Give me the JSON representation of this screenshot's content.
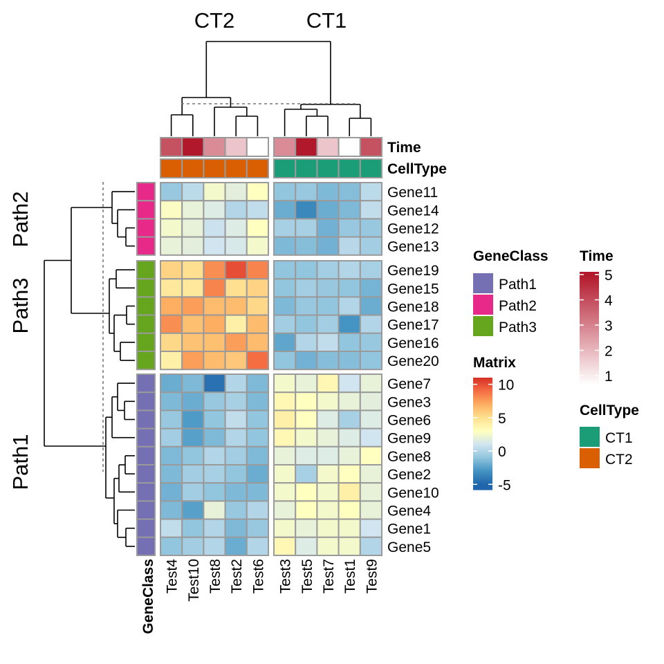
{
  "chart_data": {
    "type": "heatmap",
    "col_split_titles": [
      "CT2",
      "CT1"
    ],
    "row_split_titles": [
      "Path2",
      "Path3",
      "Path1"
    ],
    "col_groups": [
      [
        "Test4",
        "Test10",
        "Test8",
        "Test2",
        "Test6"
      ],
      [
        "Test3",
        "Test5",
        "Test7",
        "Test1",
        "Test9"
      ]
    ],
    "row_groups": [
      [
        "Gene11",
        "Gene14",
        "Gene12",
        "Gene13"
      ],
      [
        "Gene19",
        "Gene15",
        "Gene18",
        "Gene17",
        "Gene16",
        "Gene20"
      ],
      [
        "Gene7",
        "Gene3",
        "Gene6",
        "Gene9",
        "Gene8",
        "Gene2",
        "Gene10",
        "Gene4",
        "Gene1",
        "Gene5"
      ]
    ],
    "values": [
      [
        -0.8,
        0.3,
        2.5,
        1.8,
        3.0,
        -1.0,
        -0.8,
        -1.5,
        -1.3,
        0.3
      ],
      [
        2.8,
        2.0,
        1.5,
        0.0,
        0.5,
        -2.0,
        -3.5,
        -2.0,
        -1.5,
        0.5
      ],
      [
        2.5,
        2.0,
        0.8,
        1.5,
        3.0,
        -0.3,
        -0.3,
        -1.8,
        -0.8,
        -0.8
      ],
      [
        2.0,
        1.8,
        1.0,
        1.3,
        2.5,
        -1.5,
        -1.3,
        -1.8,
        0.2,
        -0.5
      ],
      [
        5.5,
        5.0,
        8.0,
        10.0,
        8.3,
        -1.0,
        -1.0,
        -0.5,
        0.0,
        -0.3
      ],
      [
        4.5,
        4.5,
        8.3,
        5.0,
        5.5,
        -1.0,
        -0.5,
        -0.8,
        -1.0,
        -1.7
      ],
      [
        7.0,
        7.5,
        6.5,
        6.5,
        5.3,
        -1.5,
        -0.8,
        -1.0,
        0.0,
        -2.0
      ],
      [
        8.0,
        6.3,
        7.0,
        4.0,
        6.5,
        -0.5,
        -1.0,
        -0.5,
        -3.0,
        0.0
      ],
      [
        5.3,
        6.2,
        6.3,
        7.5,
        6.5,
        -2.3,
        0.0,
        0.5,
        -1.0,
        -0.8
      ],
      [
        4.0,
        7.5,
        6.5,
        6.0,
        9.0,
        -1.0,
        -1.8,
        -1.3,
        -1.3,
        -1.0
      ],
      [
        -2.0,
        -1.5,
        -4.5,
        0.0,
        -1.5,
        2.5,
        2.0,
        3.5,
        1.0,
        2.0
      ],
      [
        -1.5,
        -2.0,
        -0.8,
        -0.3,
        -1.5,
        3.5,
        3.0,
        2.5,
        2.0,
        1.8
      ],
      [
        -0.8,
        -2.7,
        -1.0,
        0.5,
        -1.0,
        4.0,
        3.0,
        1.5,
        -0.3,
        1.5
      ],
      [
        -0.5,
        -2.5,
        -1.5,
        0.0,
        -1.0,
        3.5,
        2.5,
        2.0,
        1.5,
        1.0
      ],
      [
        -1.5,
        -1.0,
        0.0,
        -0.5,
        -1.5,
        2.0,
        1.5,
        1.5,
        2.0,
        3.0
      ],
      [
        -1.5,
        -0.5,
        -0.3,
        -1.0,
        -2.0,
        2.5,
        -0.3,
        2.5,
        3.0,
        2.0
      ],
      [
        -1.8,
        -0.5,
        -1.0,
        -1.5,
        -1.5,
        2.5,
        3.0,
        2.5,
        4.0,
        2.0
      ],
      [
        -1.5,
        -2.5,
        2.0,
        -0.8,
        0.0,
        2.0,
        3.0,
        2.5,
        3.0,
        2.0
      ],
      [
        0.5,
        -1.0,
        0.0,
        -1.5,
        -0.8,
        2.5,
        2.0,
        2.5,
        2.5,
        1.0
      ],
      [
        -1.0,
        -0.5,
        0.0,
        -2.0,
        0.0,
        3.5,
        1.5,
        2.5,
        2.5,
        0.0
      ]
    ],
    "annotations": {
      "Time": {
        "label": "Time",
        "values": [
          4,
          5,
          3,
          2,
          1,
          3,
          5,
          2,
          1,
          4
        ],
        "legend_ticks": [
          "1",
          "2",
          "3",
          "4",
          "5"
        ]
      },
      "CellType": {
        "label": "CellType",
        "values": [
          "CT2",
          "CT2",
          "CT2",
          "CT2",
          "CT2",
          "CT1",
          "CT1",
          "CT1",
          "CT1",
          "CT1"
        ],
        "legend_levels": [
          "CT1",
          "CT2"
        ],
        "colors": {
          "CT1": "#1B9E77",
          "CT2": "#D95F02"
        }
      },
      "GeneClass": {
        "label": "GeneClass",
        "values": [
          "Path2",
          "Path3",
          "Path1"
        ],
        "legend_levels": [
          "Path1",
          "Path2",
          "Path3"
        ],
        "colors": {
          "Path1": "#7570B3",
          "Path2": "#E7298A",
          "Path3": "#66A61E"
        }
      }
    },
    "matrix_legend": {
      "title": "Matrix",
      "ticks": [
        "10",
        "5",
        "0",
        "-5"
      ]
    },
    "color_scale": {
      "min": -5,
      "max": 11,
      "stops": [
        "#2166AC",
        "#4393C3",
        "#92C5DE",
        "#D1E5F0",
        "#FFFFBF",
        "#FEE090",
        "#FDAE61",
        "#F46D43",
        "#D73027"
      ]
    },
    "time_colors": [
      "#FFFFFF",
      "#B2182B"
    ]
  }
}
